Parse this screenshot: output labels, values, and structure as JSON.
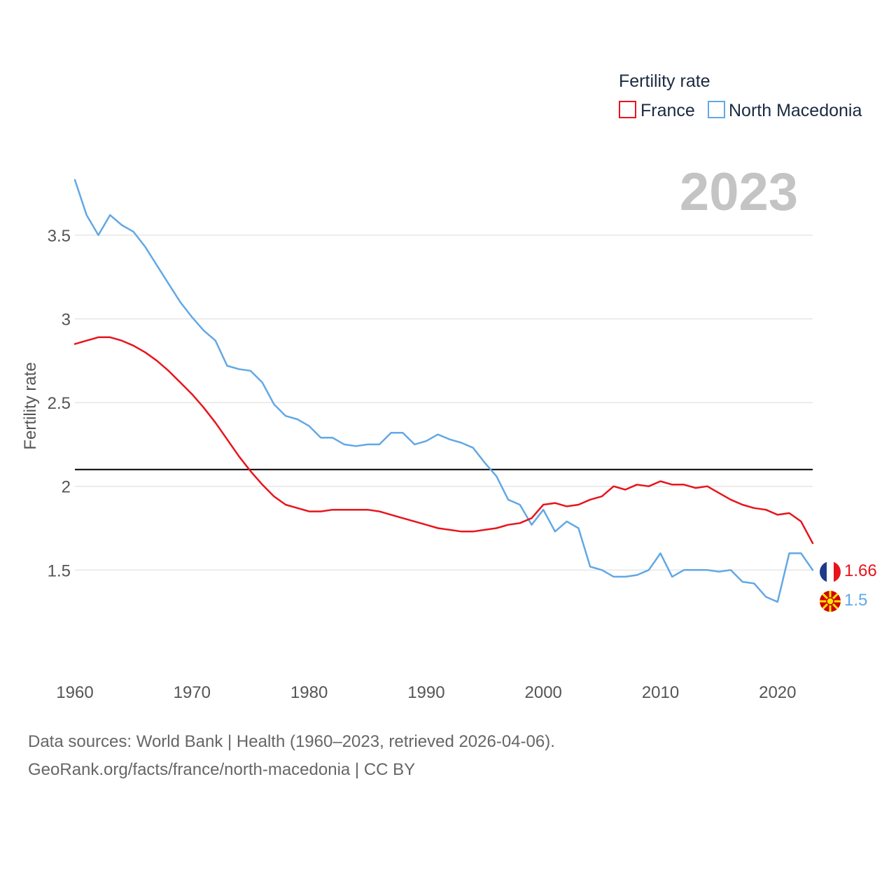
{
  "chart_data": {
    "type": "line",
    "title": "Fertility rate",
    "ylabel": "Fertility rate",
    "xlabel": "",
    "current_year": "2023",
    "xlim": [
      1960,
      2023
    ],
    "ylim": [
      1.1,
      3.88
    ],
    "x_ticks": [
      1960,
      1970,
      1980,
      1990,
      2000,
      2010,
      2020
    ],
    "y_ticks": [
      1.5,
      2,
      2.5,
      3,
      3.5
    ],
    "y_tick_labels": [
      "1.5",
      "2",
      "2.5",
      "3",
      "3.5"
    ],
    "reference_line": 2.1,
    "legend": {
      "title": "Fertility rate",
      "position": "top-right"
    },
    "series": [
      {
        "name": "France",
        "color": "#e8141c",
        "end_label": "1.66",
        "flag": "france-flag",
        "values": [
          2.85,
          2.87,
          2.89,
          2.89,
          2.87,
          2.84,
          2.8,
          2.75,
          2.69,
          2.62,
          2.55,
          2.47,
          2.38,
          2.28,
          2.18,
          2.09,
          2.01,
          1.94,
          1.89,
          1.87,
          1.85,
          1.85,
          1.86,
          1.86,
          1.86,
          1.86,
          1.85,
          1.83,
          1.81,
          1.79,
          1.77,
          1.75,
          1.74,
          1.73,
          1.73,
          1.74,
          1.75,
          1.77,
          1.78,
          1.81,
          1.89,
          1.9,
          1.88,
          1.89,
          1.92,
          1.94,
          2.0,
          1.98,
          2.01,
          2.0,
          2.03,
          2.01,
          2.01,
          1.99,
          2.0,
          1.96,
          1.92,
          1.89,
          1.87,
          1.86,
          1.83,
          1.84,
          1.79,
          1.66
        ]
      },
      {
        "name": "North Macedonia",
        "color": "#62a8e5",
        "end_label": "1.5",
        "flag": "north-macedonia-flag",
        "values": [
          3.83,
          3.62,
          3.5,
          3.62,
          3.56,
          3.52,
          3.43,
          3.32,
          3.21,
          3.1,
          3.01,
          2.93,
          2.87,
          2.72,
          2.7,
          2.69,
          2.62,
          2.49,
          2.42,
          2.4,
          2.36,
          2.29,
          2.29,
          2.25,
          2.24,
          2.25,
          2.25,
          2.32,
          2.32,
          2.25,
          2.27,
          2.31,
          2.28,
          2.26,
          2.23,
          2.14,
          2.06,
          1.92,
          1.89,
          1.77,
          1.86,
          1.73,
          1.79,
          1.75,
          1.52,
          1.5,
          1.46,
          1.46,
          1.47,
          1.5,
          1.6,
          1.46,
          1.5,
          1.5,
          1.5,
          1.49,
          1.5,
          1.43,
          1.42,
          1.34,
          1.31,
          1.6,
          1.6,
          1.5
        ]
      }
    ]
  },
  "footer": {
    "line1": "Data sources: World Bank | Health (1960–2023, retrieved 2026-04-06).",
    "line2": "GeoRank.org/facts/france/north-macedonia | CC BY"
  }
}
